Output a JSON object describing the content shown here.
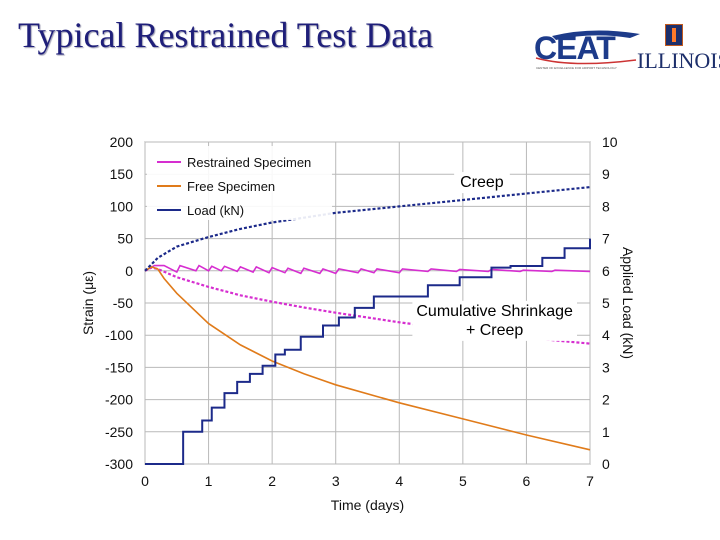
{
  "slide": {
    "title": "Typical Restrained Test Data",
    "logo_left_text": "CEAT",
    "logo_left_subtext": "CENTER OF EXCELLENCE FOR AIRPORT TECHNOLOGY",
    "logo_right_text": "ILLINOIS"
  },
  "colors": {
    "restrained": "#d62ed0",
    "free": "#e07b1a",
    "load": "#1c2a8a",
    "grid": "#b9b9b9"
  },
  "chart_data": {
    "type": "line",
    "xlabel": "Time (days)",
    "ylabel_left": "Strain (με)",
    "ylabel_right": "Applied Load (kN)",
    "xlim": [
      0,
      7
    ],
    "ylim_left": [
      -300,
      200
    ],
    "ylim_right": [
      0,
      10
    ],
    "x_ticks": [
      "0",
      "1",
      "2",
      "3",
      "4",
      "5",
      "6",
      "7"
    ],
    "y_ticks_left": [
      "200",
      "150",
      "100",
      "50",
      "0",
      "-50",
      "-100",
      "-150",
      "-200",
      "-250",
      "-300"
    ],
    "y_ticks_right": [
      "10",
      "9",
      "8",
      "7",
      "6",
      "5",
      "4",
      "3",
      "2",
      "1",
      "0"
    ],
    "grid": "on",
    "legend_position": "top-left",
    "legend": [
      "Restrained Specimen",
      "Free Specimen",
      "Load (kN)"
    ],
    "annotations": [
      {
        "text": "Creep",
        "x": 5.3,
        "y": 130
      },
      {
        "text": "Cumulative Shrinkage",
        "x": 5.5,
        "y": -70
      },
      {
        "text": "+ Creep",
        "x": 5.5,
        "y": -100
      }
    ],
    "series": [
      {
        "name": "Restrained Specimen",
        "axis": "left",
        "style": "solid",
        "x": [
          0,
          0.15,
          0.3,
          0.5,
          0.55,
          0.8,
          0.85,
          1.0,
          1.05,
          1.2,
          1.25,
          1.45,
          1.5,
          1.7,
          1.75,
          1.95,
          2.0,
          2.2,
          2.25,
          2.45,
          2.5,
          2.75,
          2.8,
          3.0,
          3.05,
          3.35,
          3.4,
          3.6,
          3.65,
          4.0,
          4.05,
          4.45,
          4.5,
          4.9,
          4.95,
          5.4,
          5.45,
          5.9,
          5.95,
          6.4,
          6.45,
          7.0
        ],
        "y": [
          0,
          8,
          8,
          -2,
          8,
          0,
          8,
          0,
          7,
          0,
          7,
          -1,
          6,
          -2,
          6,
          -3,
          5,
          -3,
          4,
          -4,
          4,
          -4,
          3,
          -4,
          3,
          -3,
          3,
          -3,
          3,
          -3,
          3,
          -1,
          3,
          -1,
          2,
          -1,
          2,
          -1,
          1,
          -1,
          1,
          -1
        ]
      },
      {
        "name": "Restrained Specimen (shrinkage + creep)",
        "axis": "left",
        "style": "dashed",
        "x": [
          0,
          0.1,
          0.2,
          0.5,
          1.0,
          1.5,
          2.0,
          2.5,
          3.0,
          4.0,
          5.0,
          6.0,
          7.0
        ],
        "y": [
          0,
          5,
          3,
          -10,
          -25,
          -38,
          -48,
          -57,
          -65,
          -80,
          -93,
          -104,
          -113
        ]
      },
      {
        "name": "Free Specimen",
        "axis": "left",
        "style": "solid",
        "x": [
          0,
          0.1,
          0.2,
          0.3,
          0.5,
          1.0,
          1.5,
          2.0,
          2.5,
          3.0,
          4.0,
          5.0,
          6.0,
          7.0
        ],
        "y": [
          0,
          6,
          3,
          -12,
          -35,
          -82,
          -115,
          -140,
          -160,
          -177,
          -205,
          -230,
          -255,
          -278
        ]
      },
      {
        "name": "Load (kN)",
        "axis": "right",
        "style": "step",
        "x": [
          0,
          0.6,
          0.9,
          1.05,
          1.25,
          1.45,
          1.6,
          1.65,
          1.85,
          2.05,
          2.2,
          2.45,
          2.8,
          3.05,
          3.3,
          3.6,
          3.85,
          4.45,
          4.95,
          5.45,
          5.75,
          6.25,
          6.6,
          7.0
        ],
        "y": [
          0,
          1,
          1.35,
          1.75,
          2.2,
          2.55,
          2.55,
          2.8,
          3.05,
          3.4,
          3.55,
          3.95,
          4.3,
          4.55,
          4.85,
          5.2,
          5.2,
          5.55,
          5.8,
          6.1,
          6.15,
          6.4,
          6.7,
          7.0
        ]
      },
      {
        "name": "Load (kN) (creep)",
        "axis": "right",
        "style": "dashed",
        "x": [
          0,
          0.1,
          0.2,
          0.5,
          1.0,
          1.5,
          2.0,
          2.5,
          3.0,
          4.0,
          5.0,
          6.0,
          7.0
        ],
        "y": [
          6.0,
          6.2,
          6.4,
          6.75,
          7.05,
          7.3,
          7.5,
          7.65,
          7.8,
          8.0,
          8.2,
          8.4,
          8.6
        ]
      }
    ]
  }
}
